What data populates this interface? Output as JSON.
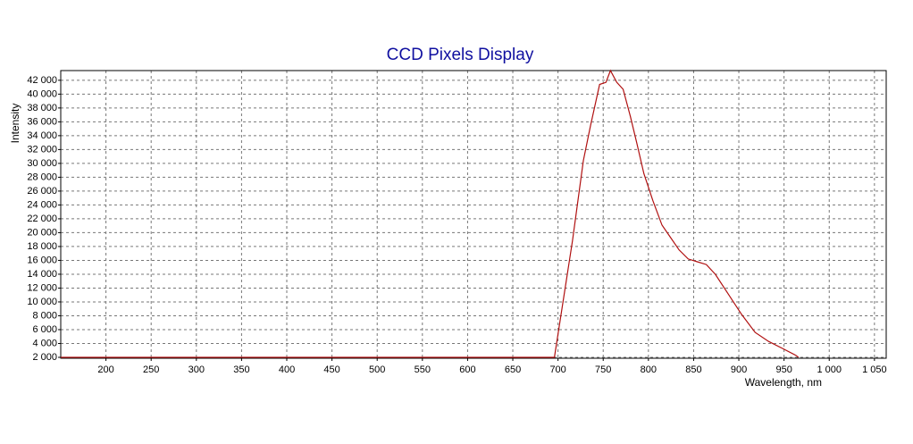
{
  "chart_data": {
    "type": "line",
    "title": "CCD Pixels Display",
    "xlabel": "Wavelength, nm",
    "ylabel": "Intensity",
    "x": [
      150,
      696,
      716,
      728,
      736,
      746,
      753,
      758,
      765,
      772,
      780,
      787,
      795,
      805,
      815,
      824,
      834,
      844,
      854,
      864,
      874,
      889,
      903,
      918,
      933,
      948,
      963,
      966
    ],
    "series": [
      {
        "name": "Intensity",
        "color": "#b01010",
        "values": [
          2000,
          2000,
          18800,
          30400,
          35500,
          41400,
          41700,
          43400,
          41700,
          40700,
          36800,
          33000,
          28500,
          24600,
          21100,
          19400,
          17500,
          16200,
          15800,
          15400,
          14000,
          11000,
          8200,
          5600,
          4300,
          3300,
          2300,
          2000
        ]
      }
    ],
    "xlim": [
      150,
      1063
    ],
    "ylim": [
      1870,
      43400
    ],
    "xticks": [
      200,
      250,
      300,
      350,
      400,
      450,
      500,
      550,
      600,
      650,
      700,
      750,
      800,
      850,
      900,
      950,
      {
        "value": 1000,
        "label": "1 000"
      },
      {
        "value": 1050,
        "label": "1 050"
      }
    ],
    "yticks": [
      {
        "value": 2000,
        "label": "2 000"
      },
      {
        "value": 4000,
        "label": "4 000"
      },
      {
        "value": 6000,
        "label": "6 000"
      },
      {
        "value": 8000,
        "label": "8 000"
      },
      {
        "value": 10000,
        "label": "10 000"
      },
      {
        "value": 12000,
        "label": "12 000"
      },
      {
        "value": 14000,
        "label": "14 000"
      },
      {
        "value": 16000,
        "label": "16 000"
      },
      {
        "value": 18000,
        "label": "18 000"
      },
      {
        "value": 20000,
        "label": "20 000"
      },
      {
        "value": 22000,
        "label": "22 000"
      },
      {
        "value": 24000,
        "label": "24 000"
      },
      {
        "value": 26000,
        "label": "26 000"
      },
      {
        "value": 28000,
        "label": "28 000"
      },
      {
        "value": 30000,
        "label": "30 000"
      },
      {
        "value": 32000,
        "label": "32 000"
      },
      {
        "value": 34000,
        "label": "34 000"
      },
      {
        "value": 36000,
        "label": "36 000"
      },
      {
        "value": 38000,
        "label": "38 000"
      },
      {
        "value": 40000,
        "label": "40 000"
      },
      {
        "value": 42000,
        "label": "42 000"
      }
    ],
    "grid": true
  }
}
